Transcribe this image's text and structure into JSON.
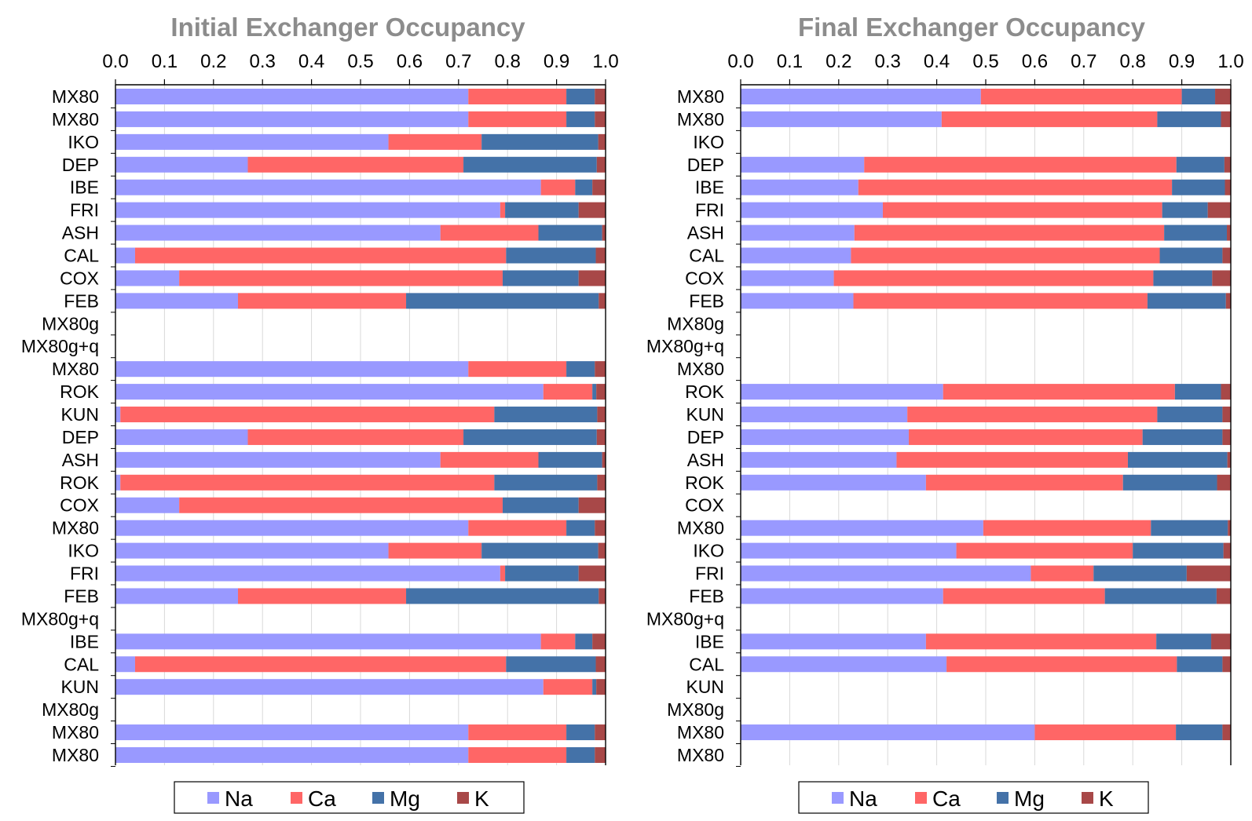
{
  "chart_data": [
    {
      "type": "bar",
      "orientation": "horizontal",
      "stacked": true,
      "title": "Initial Exchanger Occupancy",
      "xlim": [
        0,
        1
      ],
      "xticks": [
        "0.0",
        "0.1",
        "0.2",
        "0.3",
        "0.4",
        "0.5",
        "0.6",
        "0.7",
        "0.8",
        "0.9",
        "1.0"
      ],
      "grid": true,
      "legend_position": "bottom",
      "categories": [
        "MX80",
        "MX80",
        "IKO",
        "DEP",
        "IBE",
        "FRI",
        "ASH",
        "CAL",
        "COX",
        "FEB",
        "MX80g",
        "MX80g+q",
        "MX80",
        "ROK",
        "KUN",
        "DEP",
        "ASH",
        "ROK",
        "COX",
        "MX80",
        "IKO",
        "FRI",
        "FEB",
        "MX80g+q",
        "IBE",
        "CAL",
        "KUN",
        "MX80g",
        "MX80",
        "MX80"
      ],
      "series": [
        {
          "name": "Na",
          "color": "#9999ff",
          "values": [
            0.72,
            0.72,
            0.557,
            0.27,
            0.868,
            0.785,
            0.663,
            0.04,
            0.13,
            0.25,
            null,
            null,
            0.72,
            0.873,
            0.01,
            0.27,
            0.663,
            0.01,
            0.13,
            0.72,
            0.557,
            0.785,
            0.25,
            null,
            0.868,
            0.04,
            0.873,
            null,
            0.72,
            0.72
          ]
        },
        {
          "name": "Ca",
          "color": "#ff6666",
          "values": [
            0.2,
            0.2,
            0.19,
            0.44,
            0.07,
            0.01,
            0.2,
            0.757,
            0.66,
            0.343,
            null,
            null,
            0.2,
            0.1,
            0.763,
            0.44,
            0.2,
            0.763,
            0.66,
            0.2,
            0.19,
            0.01,
            0.343,
            null,
            0.07,
            0.757,
            0.1,
            null,
            0.2,
            0.2
          ]
        },
        {
          "name": "Mg",
          "color": "#4472a8",
          "values": [
            0.058,
            0.058,
            0.238,
            0.272,
            0.035,
            0.15,
            0.13,
            0.183,
            0.155,
            0.393,
            null,
            null,
            0.058,
            0.008,
            0.21,
            0.272,
            0.13,
            0.21,
            0.155,
            0.058,
            0.238,
            0.15,
            0.393,
            null,
            0.035,
            0.183,
            0.008,
            null,
            0.058,
            0.058
          ]
        },
        {
          "name": "K",
          "color": "#a84848",
          "values": [
            0.022,
            0.022,
            0.015,
            0.018,
            0.027,
            0.055,
            0.007,
            0.02,
            0.055,
            0.014,
            null,
            null,
            0.022,
            0.019,
            0.017,
            0.018,
            0.007,
            0.017,
            0.055,
            0.022,
            0.015,
            0.055,
            0.014,
            null,
            0.027,
            0.02,
            0.019,
            null,
            0.022,
            0.022
          ]
        }
      ]
    },
    {
      "type": "bar",
      "orientation": "horizontal",
      "stacked": true,
      "title": "Final Exchanger Occupancy",
      "xlim": [
        0,
        1
      ],
      "xticks": [
        "0.0",
        "0.1",
        "0.2",
        "0.3",
        "0.4",
        "0.5",
        "0.6",
        "0.7",
        "0.8",
        "0.9",
        "1.0"
      ],
      "grid": true,
      "legend_position": "bottom",
      "categories": [
        "MX80",
        "MX80",
        "IKO",
        "DEP",
        "IBE",
        "FRI",
        "ASH",
        "CAL",
        "COX",
        "FEB",
        "MX80g",
        "MX80g+q",
        "MX80",
        "ROK",
        "KUN",
        "DEP",
        "ASH",
        "ROK",
        "COX",
        "MX80",
        "IKO",
        "FRI",
        "FEB",
        "MX80g+q",
        "IBE",
        "CAL",
        "KUN",
        "MX80g",
        "MX80",
        "MX80"
      ],
      "series": [
        {
          "name": "Na",
          "color": "#9999ff",
          "values": [
            0.49,
            0.41,
            null,
            0.252,
            0.24,
            0.29,
            0.232,
            0.225,
            0.19,
            0.23,
            null,
            null,
            null,
            0.413,
            0.34,
            0.343,
            0.318,
            0.378,
            null,
            0.495,
            0.44,
            0.592,
            0.413,
            null,
            0.378,
            0.42,
            null,
            null,
            0.6,
            null
          ]
        },
        {
          "name": "Ca",
          "color": "#ff6666",
          "values": [
            0.41,
            0.44,
            null,
            0.637,
            0.64,
            0.57,
            0.632,
            0.63,
            0.652,
            0.6,
            null,
            null,
            null,
            0.473,
            0.51,
            0.477,
            0.472,
            0.402,
            null,
            0.342,
            0.36,
            0.128,
            0.33,
            null,
            0.47,
            0.47,
            null,
            null,
            0.288,
            null
          ]
        },
        {
          "name": "Mg",
          "color": "#4472a8",
          "values": [
            0.068,
            0.13,
            null,
            0.098,
            0.108,
            0.093,
            0.128,
            0.128,
            0.12,
            0.16,
            null,
            null,
            null,
            0.094,
            0.133,
            0.163,
            0.203,
            0.192,
            null,
            0.157,
            0.185,
            0.19,
            0.228,
            null,
            0.112,
            0.093,
            null,
            null,
            0.095,
            null
          ]
        },
        {
          "name": "K",
          "color": "#a84848",
          "values": [
            0.032,
            0.02,
            null,
            0.013,
            0.012,
            0.047,
            0.008,
            0.017,
            0.038,
            0.01,
            null,
            null,
            null,
            0.02,
            0.017,
            0.017,
            0.007,
            0.028,
            null,
            0.006,
            0.015,
            0.09,
            0.029,
            null,
            0.04,
            0.017,
            null,
            null,
            0.017,
            null
          ]
        }
      ]
    }
  ]
}
